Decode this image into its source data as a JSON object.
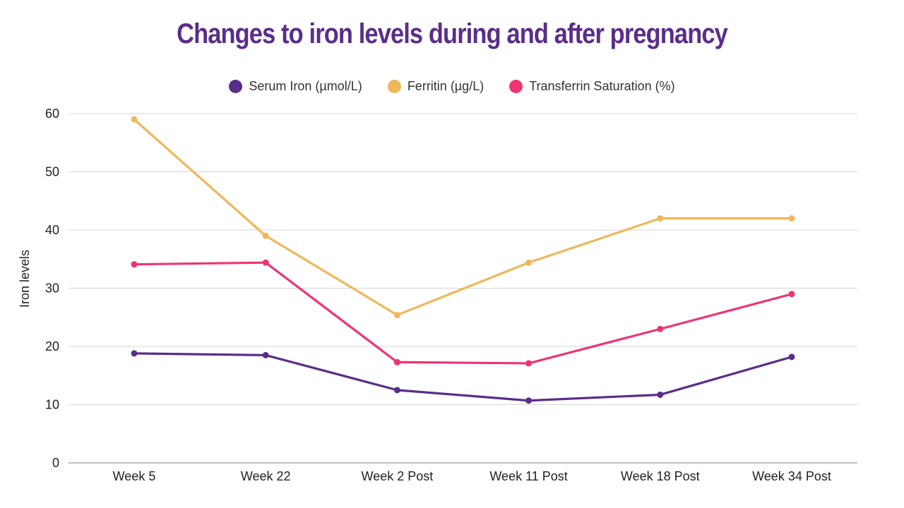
{
  "chart_data": {
    "type": "line",
    "title": "Changes to iron levels during and after pregnancy",
    "xlabel": "",
    "ylabel": "Iron levels",
    "categories": [
      "Week 5",
      "Week 22",
      "Week 2 Post",
      "Week 11 Post",
      "Week 18 Post",
      "Week 34 Post"
    ],
    "ylim": [
      0,
      60
    ],
    "yticks": [
      0,
      10,
      20,
      30,
      40,
      50,
      60
    ],
    "grid": true,
    "legend_position": "top-center",
    "series": [
      {
        "name": "Serum Iron (µmol/L)",
        "color": "#5a2d8a",
        "values": [
          18.8,
          18.5,
          12.5,
          10.7,
          11.7,
          18.2
        ]
      },
      {
        "name": "Ferritin (µg/L)",
        "color": "#f0b75a",
        "values": [
          59.0,
          39.0,
          25.4,
          34.4,
          42.0,
          42.0
        ]
      },
      {
        "name": "Transferrin Saturation (%)",
        "color": "#ee3472",
        "values": [
          34.1,
          34.4,
          17.3,
          17.1,
          23.0,
          29.0
        ]
      }
    ]
  }
}
